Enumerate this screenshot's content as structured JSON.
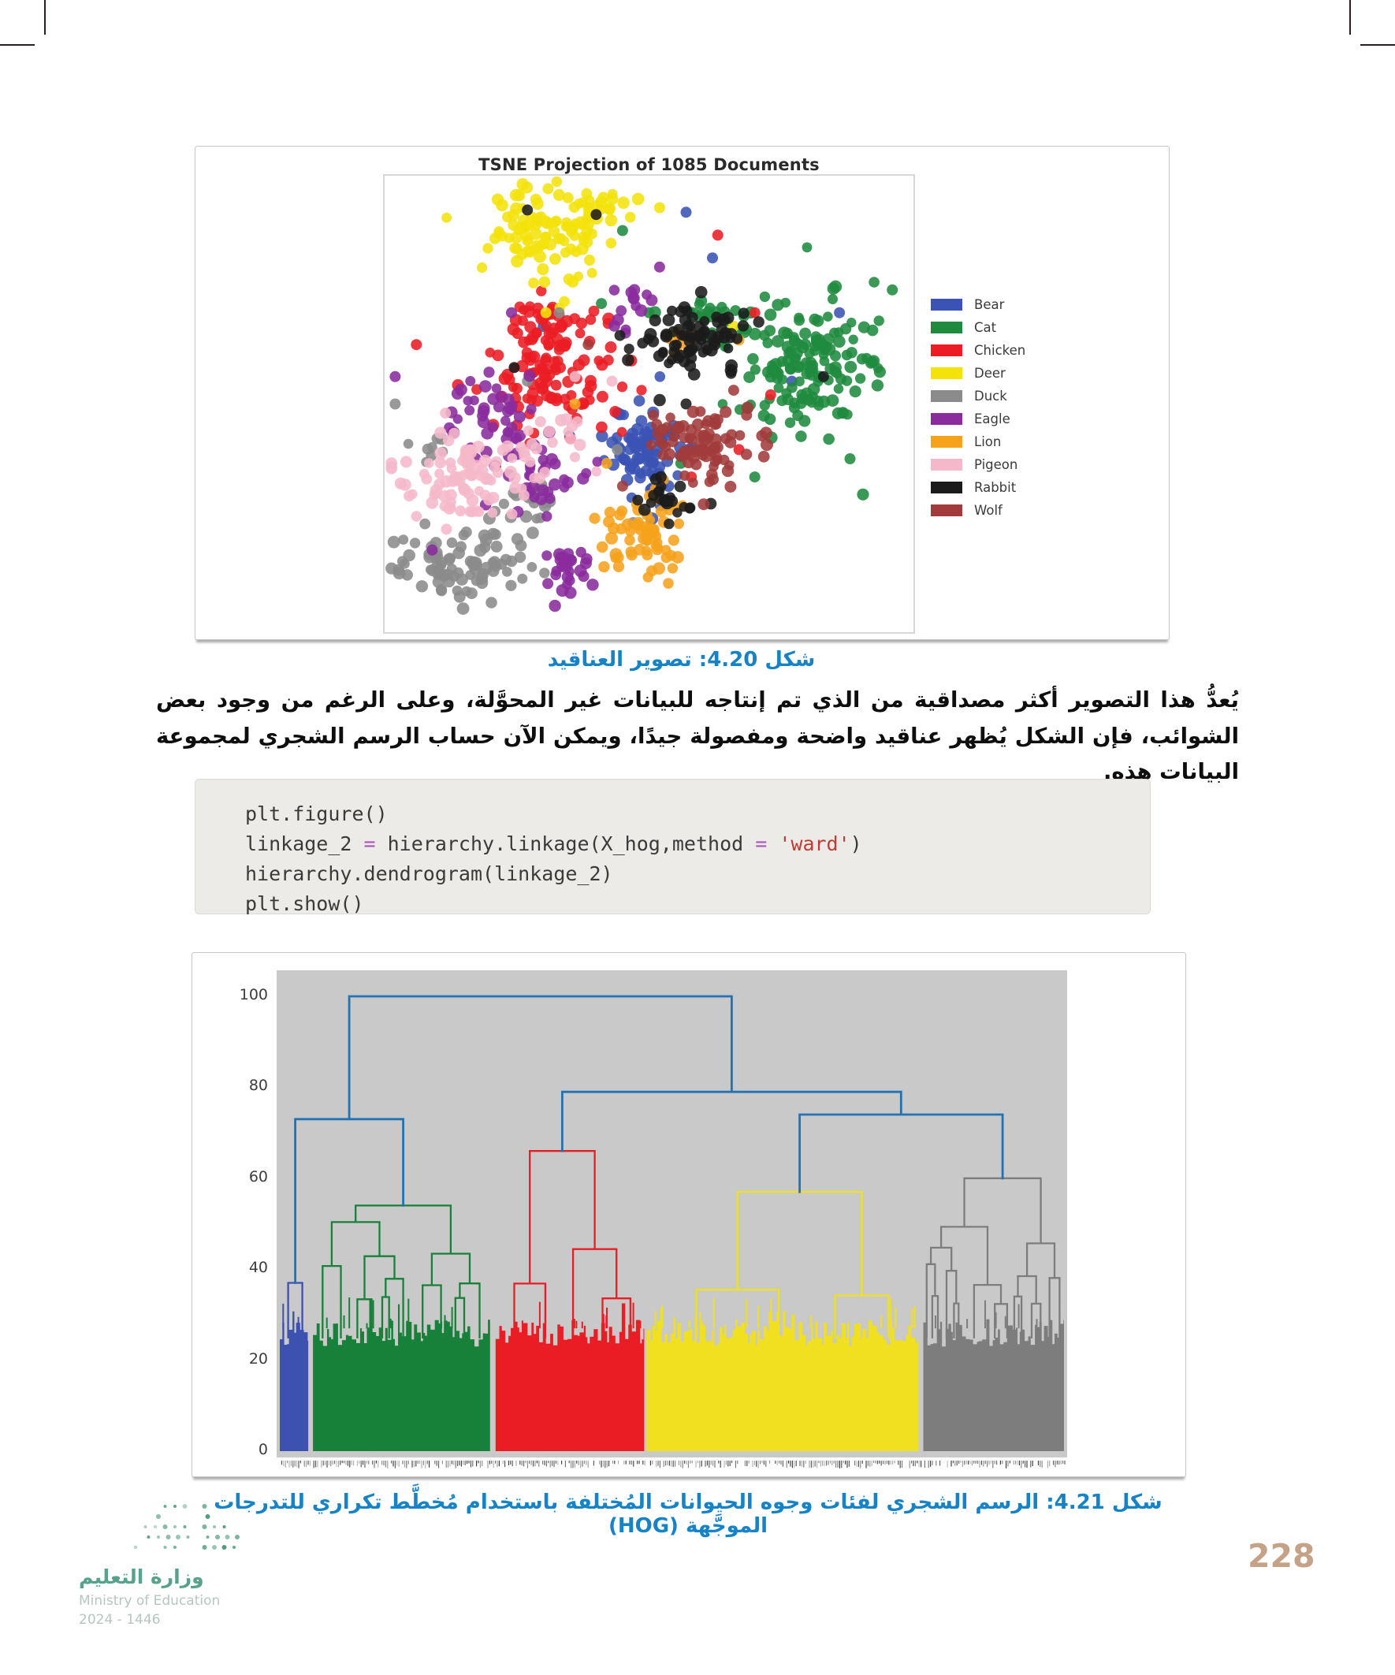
{
  "page": {
    "number": "228",
    "number_color": "#c5a287"
  },
  "footer": {
    "logo_arabic": "وزارة التعليم",
    "logo_english": "Ministry of Education",
    "logo_years": "2024 - 1446",
    "logo_dot_color": "#4f9b84"
  },
  "captions": {
    "fig_420": "شكل 4.20: تصوير العناقيد",
    "fig_421": "شكل 4.21: الرسم الشجري لفئات وجوه الحيوانات المُختلفة باستخدام مُخطَّط تكراري للتدرجات الموجَّهة (HOG)",
    "caption_color": "#1583c5"
  },
  "paragraph": {
    "text": "يُعدُّ هذا التصوير أكثر مصداقية من الذي تم إنتاجه للبيانات غير المحوَّلة، وعلى الرغم من وجود بعض الشوائب، فإن الشكل يُظهر عناقيد واضحة ومفصولة جيدًا، ويمكن الآن حساب الرسم الشجري لمجموعة البيانات هذه."
  },
  "code": {
    "lines": [
      [
        {
          "t": "plt.figure()",
          "k": "plain"
        }
      ],
      [
        {
          "t": "linkage_2 ",
          "k": "plain"
        },
        {
          "t": "=",
          "k": "op"
        },
        {
          "t": " hierarchy.linkage(X_hog,method ",
          "k": "plain"
        },
        {
          "t": "=",
          "k": "op"
        },
        {
          "t": " ",
          "k": "plain"
        },
        {
          "t": "'ward'",
          "k": "str"
        },
        {
          "t": ")",
          "k": "plain"
        }
      ],
      [
        {
          "t": "hierarchy.dendrogram(linkage_2)",
          "k": "plain"
        }
      ],
      [
        {
          "t": "plt.show()",
          "k": "plain"
        }
      ]
    ]
  },
  "chart_data": [
    {
      "type": "scatter",
      "title": "TSNE Projection of 1085 Documents",
      "xlabel": "",
      "ylabel": "",
      "axis_ticks_visible": false,
      "legend_position": "right",
      "total_documents": 1085,
      "classes": [
        {
          "name": "Bear",
          "color": "#3a53b4",
          "blobs": [
            [
              0.5,
              0.6,
              0.045,
              0.05,
              85
            ]
          ],
          "outliers": [
            [
              0.62,
              0.18
            ],
            [
              0.86,
              0.3
            ],
            [
              0.35,
              0.57
            ],
            [
              0.3,
              0.33
            ],
            [
              0.77,
              0.45
            ],
            [
              0.57,
              0.08
            ]
          ]
        },
        {
          "name": "Cat",
          "color": "#1f8b3f",
          "blobs": [
            [
              0.8,
              0.42,
              0.062,
              0.075,
              150
            ],
            [
              0.63,
              0.32,
              0.04,
              0.028,
              28
            ]
          ],
          "outliers": [
            [
              0.5,
              0.3
            ],
            [
              0.56,
              0.63
            ],
            [
              0.7,
              0.66
            ],
            [
              0.45,
              0.12
            ],
            [
              0.96,
              0.25
            ],
            [
              0.41,
              0.28
            ],
            [
              0.88,
              0.62
            ]
          ]
        },
        {
          "name": "Chicken",
          "color": "#ec1c24",
          "blobs": [
            [
              0.325,
              0.43,
              0.058,
              0.062,
              115
            ],
            [
              0.3,
              0.3,
              0.03,
              0.025,
              18
            ]
          ],
          "outliers": [
            [
              0.58,
              0.66
            ],
            [
              0.67,
              0.6
            ],
            [
              0.73,
              0.48
            ],
            [
              0.63,
              0.13
            ],
            [
              0.06,
              0.37
            ],
            [
              0.7,
              0.3
            ]
          ]
        },
        {
          "name": "Deer",
          "color": "#f4e20b",
          "blobs": [
            [
              0.315,
              0.125,
              0.055,
              0.048,
              105
            ],
            [
              0.4,
              0.05,
              0.025,
              0.018,
              12
            ]
          ],
          "outliers": [
            [
              0.52,
              0.07
            ],
            [
              0.66,
              0.33
            ],
            [
              0.305,
              0.3
            ]
          ]
        },
        {
          "name": "Duck",
          "color": "#8b8b8b",
          "blobs": [
            [
              0.14,
              0.85,
              0.06,
              0.042,
              85
            ],
            [
              0.26,
              0.72,
              0.028,
              0.028,
              18
            ],
            [
              0.095,
              0.6,
              0.02,
              0.02,
              8
            ]
          ],
          "outliers": [
            [
              0.44,
              0.6
            ],
            [
              0.02,
              0.5
            ],
            [
              0.33,
              0.3
            ],
            [
              0.47,
              0.76
            ],
            [
              0.27,
              0.45
            ]
          ]
        },
        {
          "name": "Eagle",
          "color": "#8a2b9e",
          "blobs": [
            [
              0.2,
              0.52,
              0.05,
              0.05,
              42
            ],
            [
              0.295,
              0.645,
              0.048,
              0.05,
              34
            ],
            [
              0.335,
              0.855,
              0.024,
              0.038,
              28
            ],
            [
              0.47,
              0.3,
              0.028,
              0.028,
              14
            ]
          ],
          "outliers": [
            [
              0.02,
              0.44
            ],
            [
              0.09,
              0.82
            ],
            [
              0.52,
              0.2
            ],
            [
              0.24,
              0.3
            ]
          ]
        },
        {
          "name": "Lion",
          "color": "#f6a21b",
          "blobs": [
            [
              0.487,
              0.78,
              0.038,
              0.05,
              65
            ],
            [
              0.56,
              0.36,
              0.02,
              0.02,
              8
            ]
          ],
          "outliers": [
            [
              0.36,
              0.5
            ],
            [
              0.555,
              0.555
            ],
            [
              0.67,
              0.36
            ],
            [
              0.42,
              0.63
            ]
          ]
        },
        {
          "name": "Pigeon",
          "color": "#f5b8ca",
          "blobs": [
            [
              0.165,
              0.665,
              0.065,
              0.048,
              95
            ],
            [
              0.33,
              0.565,
              0.03,
              0.03,
              14
            ]
          ],
          "outliers": [
            [
              0.43,
              0.45
            ],
            [
              0.115,
              0.52
            ],
            [
              0.36,
              0.44
            ]
          ]
        },
        {
          "name": "Rabbit",
          "color": "#1b1b1b",
          "blobs": [
            [
              0.585,
              0.355,
              0.052,
              0.04,
              78
            ],
            [
              0.52,
              0.72,
              0.028,
              0.024,
              22
            ]
          ],
          "outliers": [
            [
              0.27,
              0.075
            ],
            [
              0.445,
              0.35
            ],
            [
              0.83,
              0.44
            ],
            [
              0.245,
              0.42
            ],
            [
              0.4,
              0.085
            ],
            [
              0.57,
              0.5
            ]
          ]
        },
        {
          "name": "Wolf",
          "color": "#a23b3b",
          "blobs": [
            [
              0.6,
              0.575,
              0.048,
              0.045,
              80
            ]
          ],
          "outliers": [
            [
              0.385,
              0.37
            ],
            [
              0.45,
              0.68
            ],
            [
              0.66,
              0.47
            ]
          ]
        }
      ]
    },
    {
      "type": "dendrogram",
      "ylim": [
        0,
        100
      ],
      "yticks": [
        0,
        20,
        40,
        60,
        80,
        100
      ],
      "background": "#c9c9c9",
      "link_color": "#2173b4",
      "clusters": [
        {
          "name": "cluster-blue",
          "color": "#3c51b0",
          "x0": 0.004,
          "x1": 0.04,
          "apex": 37
        },
        {
          "name": "cluster-green",
          "color": "#17813a",
          "x0": 0.046,
          "x1": 0.27,
          "apex": 54
        },
        {
          "name": "cluster-red",
          "color": "#ea1c24",
          "x0": 0.277,
          "x1": 0.465,
          "apex": 66
        },
        {
          "name": "cluster-yellow",
          "color": "#f0e020",
          "x0": 0.468,
          "x1": 0.812,
          "apex": 57
        },
        {
          "name": "cluster-gray",
          "color": "#7d7d7d",
          "x0": 0.818,
          "x1": 0.996,
          "apex": 60
        }
      ],
      "links": [
        {
          "a": "c0",
          "b": "c1",
          "height": 73
        },
        {
          "a": "c3",
          "b": "c4",
          "height": 74
        },
        {
          "a": "c2",
          "b": "l1",
          "height": 79
        },
        {
          "a": "l0",
          "b": "l2",
          "height": 100
        }
      ]
    }
  ]
}
